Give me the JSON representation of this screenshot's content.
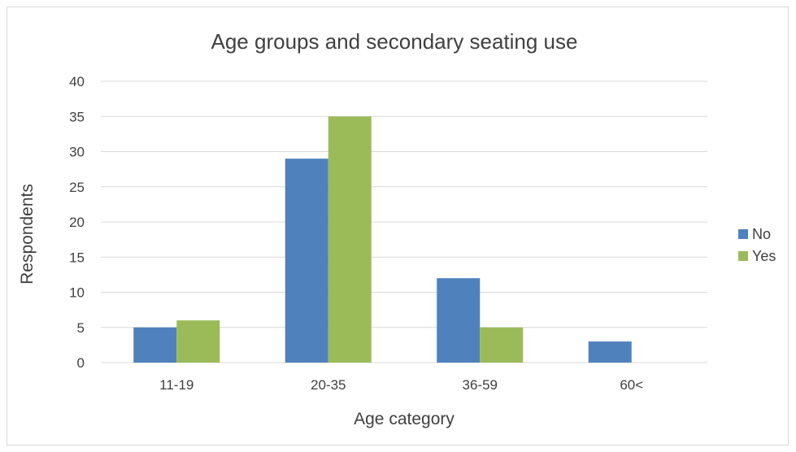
{
  "chart_data": {
    "type": "bar",
    "title": "Age groups and secondary seating use",
    "xlabel": "Age category",
    "ylabel": "Respondents",
    "categories": [
      "11-19",
      "20-35",
      "36-59",
      "60<"
    ],
    "series": [
      {
        "name": "No",
        "values": [
          5,
          29,
          12,
          3
        ],
        "color": "#4f81bd"
      },
      {
        "name": "Yes",
        "values": [
          6,
          35,
          5,
          0
        ],
        "color": "#9bbb59"
      }
    ],
    "ylim": [
      0,
      40
    ],
    "yticks": [
      0,
      5,
      10,
      15,
      20,
      25,
      30,
      35,
      40
    ],
    "grid": true,
    "legend_position": "right",
    "gridline_color": "#d9d9d9"
  }
}
